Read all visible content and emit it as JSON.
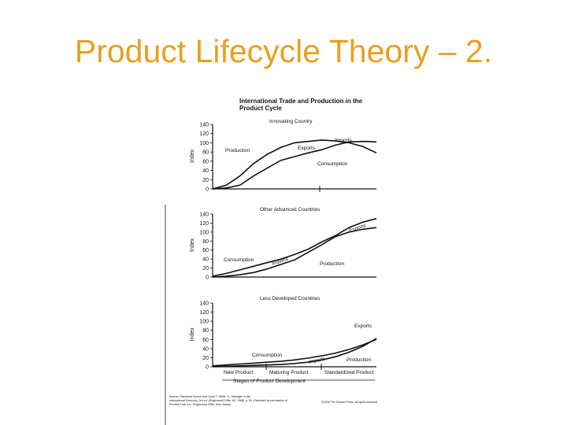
{
  "slide": {
    "title": "Product Lifecycle Theory – 2.",
    "accent_color": "#e8a020"
  },
  "figure": {
    "title_line1": "International Trade and Production in the",
    "title_line2": "Product Cycle",
    "source_note": [
      "Source: Raymond Vernon and Louis T. Wells, Jr., Manager in the",
      "International Economy, 3rd ed. (Englewood Cliffs, NJ: 1968), p. 81. Reprinted by permission of",
      "Prentice Hall, Inc., Englewood Cliffs, New Jersey."
    ],
    "copyright": "©2004 The Dryden Press. All rights reserved."
  },
  "chart_data": [
    {
      "type": "line",
      "title": "Innovating Country",
      "ylabel": "Index",
      "ylim": [
        0,
        140
      ],
      "yticks": [
        "140",
        "120",
        "100",
        "80",
        "60",
        "40",
        "20",
        "0"
      ],
      "x": [
        0,
        5,
        10,
        15,
        20,
        25,
        30,
        35,
        40,
        45,
        50,
        55,
        60
      ],
      "series": [
        {
          "name": "Production",
          "values": [
            0,
            8,
            28,
            55,
            75,
            90,
            100,
            103,
            106,
            104,
            100,
            92,
            78
          ]
        },
        {
          "name": "Consumption",
          "values": [
            0,
            2,
            8,
            28,
            45,
            62,
            70,
            78,
            85,
            95,
            102,
            103,
            102
          ]
        }
      ],
      "annotations": [
        "Production",
        "Exports",
        "Imports",
        "Consumption"
      ]
    },
    {
      "type": "line",
      "title": "Other Advanced Countries",
      "ylabel": "Index",
      "ylim": [
        0,
        140
      ],
      "yticks": [
        "140",
        "120",
        "100",
        "80",
        "60",
        "40",
        "20",
        "0"
      ],
      "x": [
        0,
        5,
        10,
        15,
        20,
        25,
        30,
        35,
        40,
        45,
        50,
        55,
        60
      ],
      "series": [
        {
          "name": "Consumption",
          "values": [
            2,
            8,
            16,
            24,
            32,
            40,
            50,
            62,
            78,
            92,
            110,
            122,
            130
          ]
        },
        {
          "name": "Production",
          "values": [
            0,
            2,
            5,
            10,
            18,
            28,
            38,
            55,
            72,
            90,
            100,
            106,
            110
          ]
        }
      ],
      "annotations": [
        "Exports",
        "Consumption",
        "Imports",
        "Production"
      ]
    },
    {
      "type": "line",
      "title": "Less Developed Countries",
      "ylabel": "Index",
      "ylim": [
        0,
        140
      ],
      "yticks": [
        "140",
        "120",
        "100",
        "80",
        "60",
        "40",
        "20",
        "0"
      ],
      "x": [
        0,
        5,
        10,
        15,
        20,
        25,
        30,
        35,
        40,
        45,
        50,
        55,
        60
      ],
      "series": [
        {
          "name": "Consumption",
          "values": [
            2,
            4,
            6,
            8,
            10,
            12,
            15,
            19,
            24,
            30,
            38,
            48,
            60
          ]
        },
        {
          "name": "Production",
          "values": [
            0,
            1,
            2,
            3,
            4,
            5,
            7,
            10,
            15,
            22,
            32,
            45,
            62
          ]
        }
      ],
      "annotations": [
        "Exports",
        "Consumption",
        "Imports",
        "Production"
      ],
      "stages": [
        "New Product",
        "Maturing Product",
        "Standardized Product"
      ],
      "xlabel": "Stages of Product Development"
    }
  ]
}
